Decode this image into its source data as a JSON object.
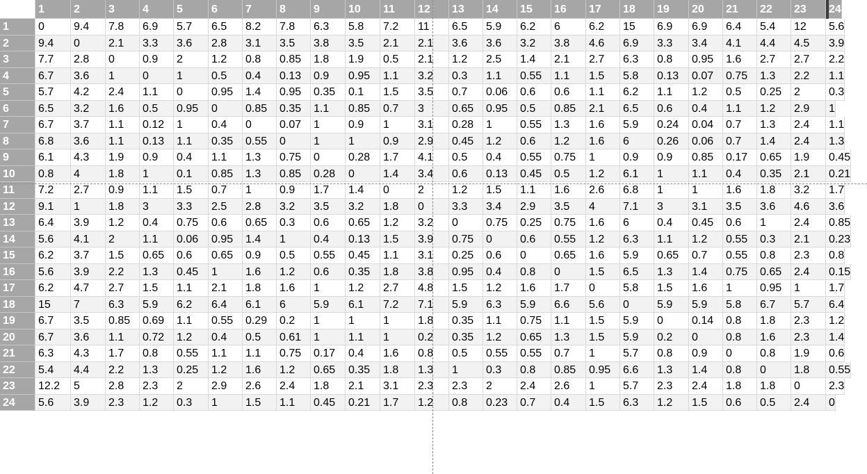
{
  "sheet": {
    "column_headers": [
      "1",
      "2",
      "3",
      "4",
      "5",
      "6",
      "7",
      "8",
      "9",
      "10",
      "11",
      "12",
      "13",
      "14",
      "15",
      "16",
      "17",
      "18",
      "19",
      "20",
      "21",
      "22",
      "23",
      "24"
    ],
    "row_headers": [
      "1",
      "2",
      "3",
      "4",
      "5",
      "6",
      "7",
      "8",
      "9",
      "10",
      "11",
      "12",
      "13",
      "14",
      "15",
      "16",
      "17",
      "18",
      "19",
      "20",
      "21",
      "22",
      "23",
      "24"
    ],
    "rows": [
      [
        "0",
        "9.4",
        "7.8",
        "6.9",
        "5.7",
        "6.5",
        "8.2",
        "7.8",
        "6.3",
        "5.8",
        "7.2",
        "11",
        "6.5",
        "5.9",
        "6.2",
        "6",
        "6.2",
        "15",
        "6.9",
        "6.9",
        "6.4",
        "5.4",
        "12",
        "5.6"
      ],
      [
        "9.4",
        "0",
        "2.1",
        "3.3",
        "3.6",
        "2.8",
        "3.1",
        "3.5",
        "3.8",
        "3.5",
        "2.1",
        "2.1",
        "3.6",
        "3.6",
        "3.2",
        "3.8",
        "4.6",
        "6.9",
        "3.3",
        "3.4",
        "4.1",
        "4.4",
        "4.5",
        "3.9"
      ],
      [
        "7.7",
        "2.8",
        "0",
        "0.9",
        "2",
        "1.2",
        "0.8",
        "0.85",
        "1.8",
        "1.9",
        "0.5",
        "2.1",
        "1.2",
        "2.5",
        "1.4",
        "2.1",
        "2.7",
        "6.3",
        "0.8",
        "0.95",
        "1.6",
        "2.7",
        "2.7",
        "2.2"
      ],
      [
        "6.7",
        "3.6",
        "1",
        "0",
        "1",
        "0.5",
        "0.4",
        "0.13",
        "0.9",
        "0.95",
        "1.1",
        "3.2",
        "0.3",
        "1.1",
        "0.55",
        "1.1",
        "1.5",
        "5.8",
        "0.13",
        "0.07",
        "0.75",
        "1.3",
        "2.2",
        "1.1"
      ],
      [
        "5.7",
        "4.2",
        "2.4",
        "1.1",
        "0",
        "0.95",
        "1.4",
        "0.95",
        "0.35",
        "0.1",
        "1.5",
        "3.5",
        "0.7",
        "0.06",
        "0.6",
        "0.6",
        "1.1",
        "6.2",
        "1.1",
        "1.2",
        "0.5",
        "0.25",
        "2",
        "0.3"
      ],
      [
        "6.5",
        "3.2",
        "1.6",
        "0.5",
        "0.95",
        "0",
        "0.85",
        "0.35",
        "1.1",
        "0.85",
        "0.7",
        "3",
        "0.65",
        "0.95",
        "0.5",
        "0.85",
        "2.1",
        "6.5",
        "0.6",
        "0.4",
        "1.1",
        "1.2",
        "2.9",
        "1"
      ],
      [
        "6.7",
        "3.7",
        "1.1",
        "0.12",
        "1",
        "0.4",
        "0",
        "0.07",
        "1",
        "0.9",
        "1",
        "3.1",
        "0.28",
        "1",
        "0.55",
        "1.3",
        "1.6",
        "5.9",
        "0.24",
        "0.04",
        "0.7",
        "1.3",
        "2.4",
        "1.1"
      ],
      [
        "6.8",
        "3.6",
        "1.1",
        "0.13",
        "1.1",
        "0.35",
        "0.55",
        "0",
        "1",
        "1",
        "0.9",
        "2.9",
        "0.45",
        "1.2",
        "0.6",
        "1.2",
        "1.6",
        "6",
        "0.26",
        "0.06",
        "0.7",
        "1.4",
        "2.4",
        "1.3"
      ],
      [
        "6.1",
        "4.3",
        "1.9",
        "0.9",
        "0.4",
        "1.1",
        "1.3",
        "0.75",
        "0",
        "0.28",
        "1.7",
        "4.1",
        "0.5",
        "0.4",
        "0.55",
        "0.75",
        "1",
        "0.9",
        "0.9",
        "0.85",
        "0.17",
        "0.65",
        "1.9",
        "0.45"
      ],
      [
        "0.8",
        "4",
        "1.8",
        "1",
        "0.1",
        "0.85",
        "1.3",
        "0.85",
        "0.28",
        "0",
        "1.4",
        "3.4",
        "0.6",
        "0.13",
        "0.45",
        "0.5",
        "1.2",
        "6.1",
        "1",
        "1.1",
        "0.4",
        "0.35",
        "2.1",
        "0.21"
      ],
      [
        "7.2",
        "2.7",
        "0.9",
        "1.1",
        "1.5",
        "0.7",
        "1",
        "0.9",
        "1.7",
        "1.4",
        "0",
        "2",
        "1.2",
        "1.5",
        "1.1",
        "1.6",
        "2.6",
        "6.8",
        "1",
        "1",
        "1.6",
        "1.8",
        "3.2",
        "1.7"
      ],
      [
        "9.1",
        "1",
        "1.8",
        "3",
        "3.3",
        "2.5",
        "2.8",
        "3.2",
        "3.5",
        "3.2",
        "1.8",
        "0",
        "3.3",
        "3.4",
        "2.9",
        "3.5",
        "4",
        "7.1",
        "3",
        "3.1",
        "3.5",
        "3.6",
        "4.6",
        "3.6"
      ],
      [
        "6.4",
        "3.9",
        "1.2",
        "0.4",
        "0.75",
        "0.6",
        "0.65",
        "0.3",
        "0.6",
        "0.65",
        "1.2",
        "3.2",
        "0",
        "0.75",
        "0.25",
        "0.75",
        "1.6",
        "6",
        "0.4",
        "0.45",
        "0.6",
        "1",
        "2.4",
        "0.85"
      ],
      [
        "5.6",
        "4.1",
        "2",
        "1.1",
        "0.06",
        "0.95",
        "1.4",
        "1",
        "0.4",
        "0.13",
        "1.5",
        "3.9",
        "0.75",
        "0",
        "0.6",
        "0.55",
        "1.2",
        "6.3",
        "1.1",
        "1.2",
        "0.55",
        "0.3",
        "2.1",
        "0.23"
      ],
      [
        "6.2",
        "3.7",
        "1.5",
        "0.65",
        "0.6",
        "0.65",
        "0.9",
        "0.5",
        "0.55",
        "0.45",
        "1.1",
        "3.1",
        "0.25",
        "0.6",
        "0",
        "0.65",
        "1.6",
        "5.9",
        "0.65",
        "0.7",
        "0.55",
        "0.8",
        "2.3",
        "0.8"
      ],
      [
        "5.6",
        "3.9",
        "2.2",
        "1.3",
        "0.45",
        "1",
        "1.6",
        "1.2",
        "0.6",
        "0.35",
        "1.8",
        "3.8",
        "0.95",
        "0.4",
        "0.8",
        "0",
        "1.5",
        "6.5",
        "1.3",
        "1.4",
        "0.75",
        "0.65",
        "2.4",
        "0.15"
      ],
      [
        "6.2",
        "4.7",
        "2.7",
        "1.5",
        "1.1",
        "2.1",
        "1.8",
        "1.6",
        "1",
        "1.2",
        "2.7",
        "4.8",
        "1.5",
        "1.2",
        "1.6",
        "1.7",
        "0",
        "5.8",
        "1.5",
        "1.6",
        "1",
        "0.95",
        "1",
        "1.7"
      ],
      [
        "15",
        "7",
        "6.3",
        "5.9",
        "6.2",
        "6.4",
        "6.1",
        "6",
        "5.9",
        "6.1",
        "7.2",
        "7.1",
        "5.9",
        "6.3",
        "5.9",
        "6.6",
        "5.6",
        "0",
        "5.9",
        "5.9",
        "5.8",
        "6.7",
        "5.7",
        "6.4"
      ],
      [
        "6.7",
        "3.5",
        "0.85",
        "0.69",
        "1.1",
        "0.55",
        "0.29",
        "0.2",
        "1",
        "1",
        "1",
        "1.8",
        "0.35",
        "1.1",
        "0.75",
        "1.1",
        "1.5",
        "5.9",
        "0",
        "0.14",
        "0.8",
        "1.8",
        "2.3",
        "1.2"
      ],
      [
        "6.7",
        "3.6",
        "1.1",
        "0.72",
        "1.2",
        "0.4",
        "0.5",
        "0.61",
        "1",
        "1.1",
        "1",
        "0.2",
        "0.35",
        "1.2",
        "0.65",
        "1.3",
        "1.5",
        "5.9",
        "0.2",
        "0",
        "0.8",
        "1.6",
        "2.3",
        "1.4"
      ],
      [
        "6.3",
        "4.3",
        "1.7",
        "0.8",
        "0.55",
        "1.1",
        "1.1",
        "0.75",
        "0.17",
        "0.4",
        "1.6",
        "0.8",
        "0.5",
        "0.55",
        "0.55",
        "0.7",
        "1",
        "5.7",
        "0.8",
        "0.9",
        "0",
        "0.8",
        "1.9",
        "0.6"
      ],
      [
        "5.4",
        "4.4",
        "2.2",
        "1.3",
        "0.25",
        "1.2",
        "1.6",
        "1.2",
        "0.65",
        "0.35",
        "1.8",
        "1.3",
        "1",
        "0.3",
        "0.8",
        "0.85",
        "0.95",
        "6.6",
        "1.3",
        "1.4",
        "0.8",
        "0",
        "1.8",
        "0.55"
      ],
      [
        "12.2",
        "5",
        "2.8",
        "2.3",
        "2",
        "2.9",
        "2.6",
        "2.4",
        "1.8",
        "2.1",
        "3.1",
        "2.3",
        "2.3",
        "2",
        "2.4",
        "2.6",
        "1",
        "5.7",
        "2.3",
        "2.4",
        "1.8",
        "1.8",
        "0",
        "2.3"
      ],
      [
        "5.6",
        "3.9",
        "2.3",
        "1.2",
        "0.3",
        "1",
        "1.5",
        "1.1",
        "0.45",
        "0.21",
        "1.7",
        "1.2",
        "0.8",
        "0.23",
        "0.7",
        "0.4",
        "1.5",
        "6.3",
        "1.2",
        "1.5",
        "0.6",
        "0.5",
        "2.4",
        "0"
      ]
    ]
  }
}
